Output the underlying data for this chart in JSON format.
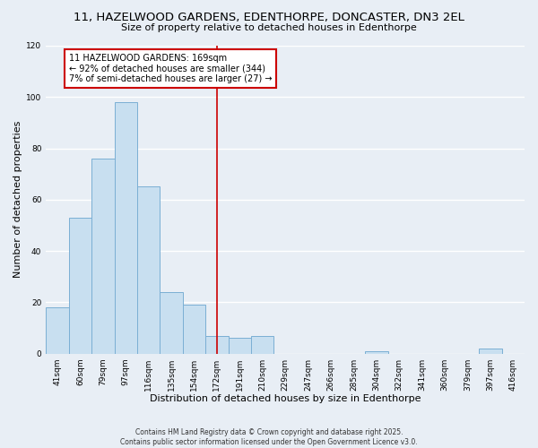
{
  "title": "11, HAZELWOOD GARDENS, EDENTHORPE, DONCASTER, DN3 2EL",
  "subtitle": "Size of property relative to detached houses in Edenthorpe",
  "xlabel": "Distribution of detached houses by size in Edenthorpe",
  "ylabel": "Number of detached properties",
  "categories": [
    "41sqm",
    "60sqm",
    "79sqm",
    "97sqm",
    "116sqm",
    "135sqm",
    "154sqm",
    "172sqm",
    "191sqm",
    "210sqm",
    "229sqm",
    "247sqm",
    "266sqm",
    "285sqm",
    "304sqm",
    "322sqm",
    "341sqm",
    "360sqm",
    "379sqm",
    "397sqm",
    "416sqm"
  ],
  "values": [
    18,
    53,
    76,
    98,
    65,
    24,
    19,
    7,
    6,
    7,
    0,
    0,
    0,
    0,
    1,
    0,
    0,
    0,
    0,
    2,
    0
  ],
  "bar_color": "#c8dff0",
  "bar_edge_color": "#7bafd4",
  "vline_x_idx": 7,
  "vline_color": "#cc0000",
  "ylim": [
    0,
    120
  ],
  "yticks": [
    0,
    20,
    40,
    60,
    80,
    100,
    120
  ],
  "annotation_line1": "11 HAZELWOOD GARDENS: 169sqm",
  "annotation_line2": "← 92% of detached houses are smaller (344)",
  "annotation_line3": "7% of semi-detached houses are larger (27) →",
  "footer_line1": "Contains HM Land Registry data © Crown copyright and database right 2025.",
  "footer_line2": "Contains public sector information licensed under the Open Government Licence v3.0.",
  "background_color": "#e8eef5",
  "plot_bg_color": "#e8eef5",
  "grid_color": "#ffffff",
  "title_fontsize": 9.5,
  "subtitle_fontsize": 8,
  "axis_label_fontsize": 8,
  "tick_fontsize": 6.5,
  "footer_fontsize": 5.5
}
